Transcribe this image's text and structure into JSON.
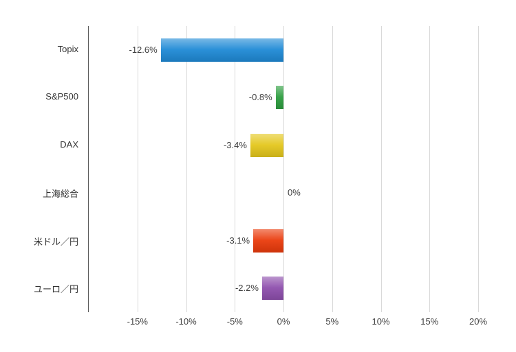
{
  "chart_data": {
    "type": "bar",
    "orientation": "horizontal",
    "title": "",
    "xlabel": "",
    "ylabel": "",
    "categories": [
      "Topix",
      "S&P500",
      "DAX",
      "上海総合",
      "米ドル／円",
      "ユーロ／円"
    ],
    "values": [
      -12.6,
      -0.8,
      -3.4,
      0,
      -3.1,
      -2.2
    ],
    "value_labels": [
      "-12.6%",
      "-0.8%",
      "-3.4%",
      "0%",
      "-3.1%",
      "-2.2%"
    ],
    "bar_colors": [
      "#1f8ad6",
      "#2e9e40",
      "#e4c71d",
      "#999999",
      "#ea3b0c",
      "#8e4fad"
    ],
    "xlim": [
      -20,
      20
    ],
    "xticks": [
      "-15%",
      "-10%",
      "-5%",
      "0%",
      "5%",
      "10%",
      "15%",
      "20%"
    ],
    "xtick_values": [
      -15,
      -10,
      -5,
      0,
      5,
      10,
      15,
      20
    ],
    "grid": true,
    "legend": "none",
    "background_color": "#ffffff",
    "gridline_color": "#d9d9d9",
    "axis_line_color": "#595959",
    "label_color": "#404040"
  }
}
